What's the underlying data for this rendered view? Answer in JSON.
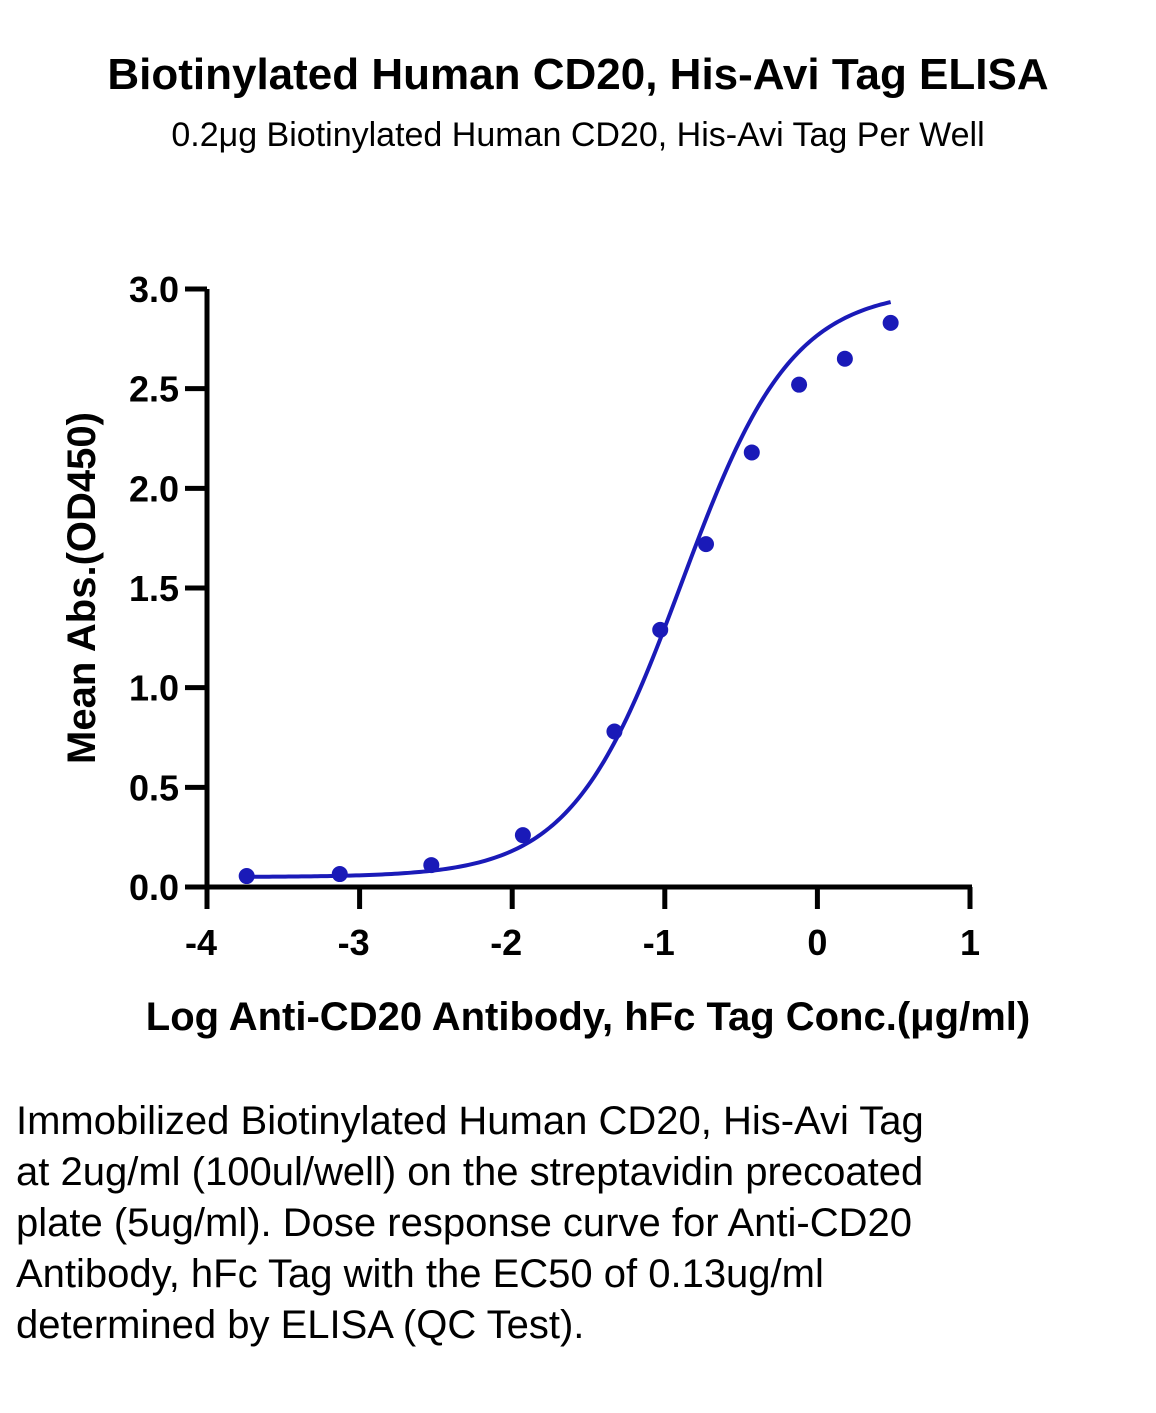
{
  "title": "Biotinylated Human CD20, His-Avi Tag ELISA",
  "subtitle": "0.2μg Biotinylated Human CD20, His-Avi Tag Per Well",
  "caption": "Immobilized Biotinylated Human CD20, His-Avi Tag at 2ug/ml (100ul/well) on the streptavidin precoated plate (5ug/ml). Dose response curve for Anti-CD20 Antibody, hFc Tag with the EC50 of 0.13ug/ml determined by ELISA (QC Test).",
  "chart_data": {
    "type": "scatter",
    "title": "Biotinylated Human CD20, His-Avi Tag ELISA",
    "subtitle": "0.2μg Biotinylated Human CD20, His-Avi Tag Per Well",
    "xlabel": "Log Anti-CD20 Antibody, hFc Tag Conc.(μg/ml)",
    "ylabel": "Mean Abs.(OD450)",
    "xlim": [
      -4,
      1
    ],
    "ylim": [
      0,
      3
    ],
    "xticks": [
      -4,
      -3,
      -2,
      -1,
      0,
      1
    ],
    "xtick_labels": [
      "-4",
      "-3",
      "-2",
      "-1",
      "0",
      "1"
    ],
    "yticks": [
      0,
      0.5,
      1,
      1.5,
      2,
      2.5,
      3
    ],
    "ytick_labels": [
      "0.0",
      "0.5",
      "1.0",
      "1.5",
      "2.0",
      "2.5",
      "3.0"
    ],
    "grid": false,
    "color": "#1a1ab8",
    "series": [
      {
        "x": [
          -3.74,
          -3.13,
          -2.53,
          -1.93,
          -1.33,
          -1.03,
          -0.73,
          -0.43,
          -0.12,
          0.18,
          0.48
        ],
        "y": [
          0.055,
          0.065,
          0.11,
          0.26,
          0.78,
          1.29,
          1.72,
          2.18,
          2.52,
          2.65,
          2.83
        ]
      }
    ],
    "fit_curve": {
      "model": "4PL",
      "bottom": 0.05,
      "top": 3.0,
      "log_ec50": -0.89,
      "hill_slope": 1.2,
      "x_range": [
        -3.74,
        0.48
      ]
    }
  }
}
